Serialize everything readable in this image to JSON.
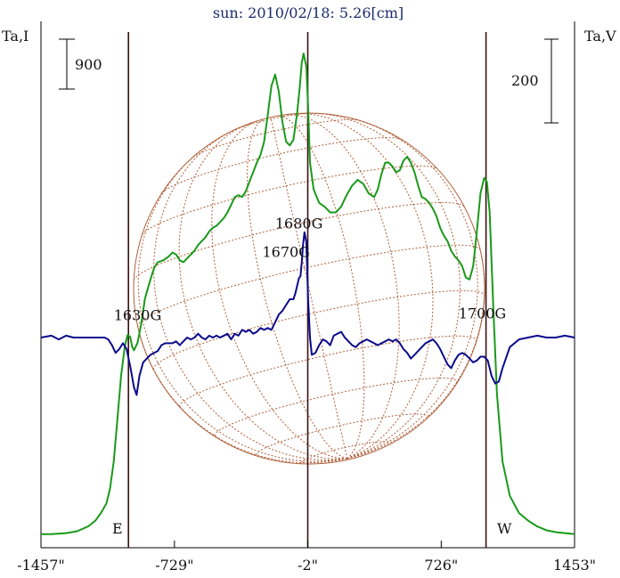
{
  "chart_data": {
    "type": "line",
    "title": "sun: 2010/02/18: 5.26[cm]",
    "left_axis_label": "Ta,I",
    "right_axis_label": "Ta,V",
    "left_scale_bar": "900",
    "right_scale_bar": "200",
    "x_tick_labels": [
      "-1457\"",
      "-729\"",
      "-2\"",
      "726\"",
      "1453\""
    ],
    "x_tick_values": [
      -1457,
      -729,
      -2,
      726,
      1453
    ],
    "xlim": [
      -1457,
      1453
    ],
    "limb_labels": {
      "east": "E",
      "west": "W"
    },
    "region_lines": [
      -980,
      -2,
      970
    ],
    "annotations": [
      {
        "text": "1630G",
        "x": -930,
        "level": 0.09
      },
      {
        "text": "1680G",
        "x": -50,
        "level": 0.57
      },
      {
        "text": "1670G",
        "x": -120,
        "level": 0.42
      },
      {
        "text": "1700G",
        "x": 950,
        "level": 0.1
      }
    ],
    "colors": {
      "stokes_i": "#1a9a1a",
      "stokes_v": "#0a0a8c",
      "sun_grid": "#b0603a",
      "region_line": "#3a1010",
      "title": "#1a2a6a"
    },
    "series": [
      {
        "key": "stokes_i",
        "x": [
          -1457,
          -1400,
          -1320,
          -1260,
          -1200,
          -1160,
          -1130,
          -1100,
          -1080,
          -1060,
          -1040,
          -1020,
          -1000,
          -985,
          -970,
          -960,
          -950,
          -930,
          -910,
          -890,
          -860,
          -840,
          -820,
          -790,
          -760,
          -740,
          -720,
          -700,
          -680,
          -660,
          -640,
          -620,
          -600,
          -580,
          -560,
          -540,
          -520,
          -500,
          -480,
          -460,
          -440,
          -420,
          -400,
          -380,
          -360,
          -340,
          -320,
          -300,
          -280,
          -260,
          -240,
          -220,
          -200,
          -180,
          -160,
          -140,
          -120,
          -100,
          -80,
          -60,
          -45,
          -35,
          -25,
          -10,
          0,
          10,
          30,
          60,
          90,
          120,
          150,
          180,
          210,
          240,
          270,
          300,
          330,
          360,
          380,
          400,
          420,
          440,
          460,
          480,
          500,
          520,
          540,
          560,
          580,
          600,
          620,
          640,
          660,
          680,
          700,
          720,
          740,
          760,
          780,
          800,
          820,
          840,
          860,
          880,
          900,
          920,
          940,
          960,
          975,
          990,
          1010,
          1030,
          1060,
          1100,
          1150,
          1200,
          1250,
          1300,
          1350,
          1400,
          1453
        ],
        "y": [
          0.02,
          0.02,
          0.025,
          0.035,
          0.06,
          0.09,
          0.13,
          0.18,
          0.26,
          0.4,
          0.62,
          0.85,
          1.0,
          1.06,
          1.05,
          1.0,
          0.98,
          1.02,
          1.12,
          1.25,
          1.35,
          1.41,
          1.44,
          1.45,
          1.47,
          1.49,
          1.48,
          1.45,
          1.44,
          1.46,
          1.48,
          1.5,
          1.53,
          1.55,
          1.57,
          1.6,
          1.62,
          1.63,
          1.65,
          1.67,
          1.7,
          1.74,
          1.78,
          1.79,
          1.78,
          1.81,
          1.86,
          1.91,
          1.96,
          2.0,
          2.07,
          2.21,
          2.36,
          2.42,
          2.33,
          2.17,
          2.07,
          2.05,
          2.08,
          2.22,
          2.36,
          2.48,
          2.53,
          2.46,
          2.25,
          1.96,
          1.82,
          1.75,
          1.73,
          1.7,
          1.7,
          1.73,
          1.79,
          1.84,
          1.87,
          1.85,
          1.8,
          1.78,
          1.82,
          1.9,
          1.96,
          1.96,
          1.94,
          1.91,
          1.92,
          1.97,
          1.99,
          1.96,
          1.91,
          1.84,
          1.78,
          1.77,
          1.75,
          1.72,
          1.68,
          1.62,
          1.58,
          1.55,
          1.5,
          1.47,
          1.45,
          1.42,
          1.36,
          1.35,
          1.42,
          1.6,
          1.8,
          1.88,
          1.86,
          1.7,
          1.2,
          0.75,
          0.4,
          0.22,
          0.13,
          0.09,
          0.06,
          0.04,
          0.03,
          0.025,
          0.02
        ]
      },
      {
        "key": "stokes_v",
        "x": [
          -1457,
          -1400,
          -1360,
          -1320,
          -1280,
          -1240,
          -1200,
          -1160,
          -1130,
          -1110,
          -1090,
          -1070,
          -1050,
          -1030,
          -1010,
          -990,
          -970,
          -950,
          -935,
          -920,
          -900,
          -880,
          -860,
          -840,
          -820,
          -800,
          -780,
          -760,
          -740,
          -720,
          -700,
          -680,
          -660,
          -640,
          -620,
          -600,
          -580,
          -560,
          -540,
          -520,
          -500,
          -480,
          -460,
          -440,
          -420,
          -400,
          -380,
          -360,
          -340,
          -320,
          -300,
          -280,
          -260,
          -240,
          -220,
          -200,
          -180,
          -160,
          -140,
          -120,
          -100,
          -80,
          -70,
          -60,
          -50,
          -42,
          -35,
          -28,
          -20,
          -10,
          0,
          10,
          20,
          40,
          60,
          80,
          100,
          120,
          140,
          160,
          180,
          200,
          220,
          240,
          260,
          280,
          300,
          320,
          340,
          360,
          380,
          400,
          420,
          440,
          460,
          480,
          500,
          520,
          540,
          560,
          580,
          600,
          620,
          640,
          660,
          680,
          700,
          720,
          740,
          760,
          780,
          800,
          820,
          840,
          860,
          880,
          900,
          920,
          940,
          960,
          980,
          1000,
          1020,
          1040,
          1060,
          1100,
          1150,
          1200,
          1250,
          1300,
          1350,
          1400,
          1453
        ],
        "y": [
          0.0,
          0.01,
          -0.01,
          0.01,
          0.0,
          0.0,
          0.0,
          0.0,
          0.0,
          0.0,
          -0.01,
          -0.04,
          -0.08,
          -0.06,
          -0.03,
          -0.06,
          -0.15,
          -0.26,
          -0.3,
          -0.2,
          -0.13,
          -0.11,
          -0.09,
          -0.08,
          -0.07,
          -0.04,
          -0.03,
          -0.03,
          -0.03,
          -0.02,
          -0.04,
          -0.02,
          0.0,
          -0.01,
          0.0,
          0.02,
          0.0,
          -0.01,
          0.01,
          0.0,
          0.01,
          0.0,
          0.01,
          0.02,
          -0.01,
          0.02,
          0.01,
          0.04,
          0.03,
          0.04,
          0.02,
          0.03,
          0.05,
          0.04,
          0.05,
          0.04,
          0.08,
          0.12,
          0.14,
          0.17,
          0.2,
          0.2,
          0.23,
          0.27,
          0.31,
          0.32,
          0.39,
          0.48,
          0.55,
          0.5,
          0.2,
          0.0,
          -0.09,
          -0.08,
          -0.04,
          -0.01,
          -0.02,
          -0.04,
          0.01,
          0.02,
          0.03,
          0.0,
          -0.02,
          -0.04,
          -0.05,
          -0.03,
          -0.02,
          -0.01,
          -0.02,
          -0.03,
          -0.04,
          -0.03,
          -0.02,
          -0.01,
          -0.02,
          -0.01,
          -0.03,
          -0.06,
          -0.08,
          -0.11,
          -0.09,
          -0.07,
          -0.05,
          -0.03,
          -0.02,
          -0.01,
          -0.03,
          -0.06,
          -0.1,
          -0.14,
          -0.16,
          -0.12,
          -0.09,
          -0.08,
          -0.09,
          -0.11,
          -0.13,
          -0.12,
          -0.1,
          -0.1,
          -0.12,
          -0.2,
          -0.24,
          -0.23,
          -0.16,
          -0.05,
          -0.01,
          0.0,
          0.01,
          0.0,
          0.0,
          0.01,
          0.0
        ]
      }
    ]
  }
}
